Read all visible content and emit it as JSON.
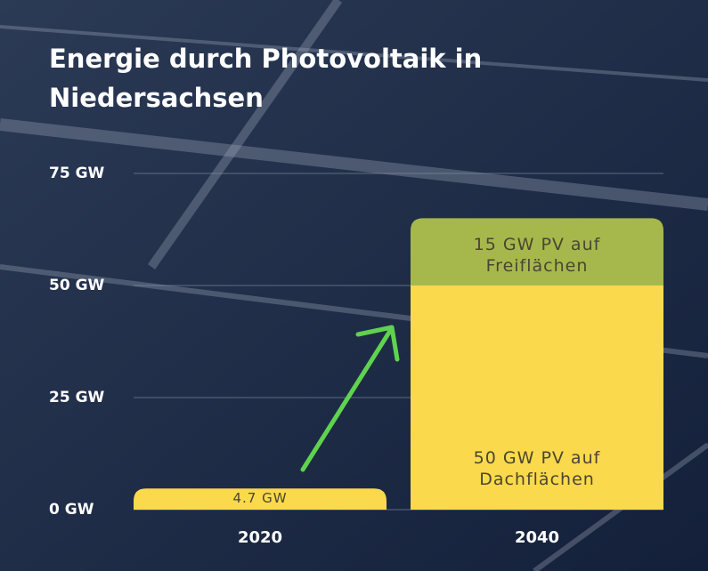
{
  "chart_data": {
    "type": "stacked_bar",
    "title": "Energie durch Photovoltaik in Niedersachsen",
    "categories": [
      "2020",
      "2040"
    ],
    "series": [
      {
        "color": "#fbd94d",
        "values": [
          4.7,
          50
        ],
        "value_labels": [
          "4.7 GW",
          "50 GW PV auf Dachflächen"
        ]
      },
      {
        "color": "#a6b84c",
        "values": [
          null,
          15
        ],
        "value_labels": [
          null,
          "15 GW PV auf Freiflächen"
        ]
      }
    ],
    "ylim": [
      0,
      75
    ],
    "yticks": [
      {
        "value": 0,
        "label": "0 GW"
      },
      {
        "value": 25,
        "label": "25 GW"
      },
      {
        "value": 50,
        "label": "50 GW"
      },
      {
        "value": 75,
        "label": "75 GW"
      }
    ],
    "grid": true
  }
}
